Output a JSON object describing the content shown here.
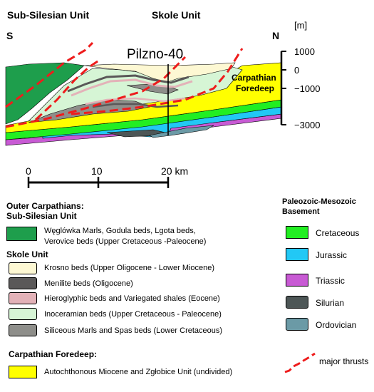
{
  "header": {
    "sub_silesian": "Sub-Silesian Unit",
    "skole": "Skole Unit",
    "south": "S",
    "north": "N",
    "well": "Pilzno-40",
    "carpathian_foredeep_line1": "Carpathian",
    "carpathian_foredeep_line2": "Foredeep"
  },
  "depth_axis": {
    "unit": "[m]",
    "ticks": [
      "1000",
      "0",
      "−1000",
      "−3000"
    ]
  },
  "scale_bar": {
    "labels": [
      "0",
      "10",
      "20 km"
    ]
  },
  "colors": {
    "sub_silesian_green": "#1e9e4c",
    "krosno": "#fdf8d3",
    "menilite": "#5a5858",
    "hieroglyphic": "#e3b2b8",
    "inoceramian": "#d6f5d5",
    "siliceous": "#8e8e8a",
    "foredeep_yellow": "#ffff00",
    "cretaceous": "#22ee22",
    "jurassic": "#22c8f5",
    "triassic": "#c85ad4",
    "silurian": "#4d5656",
    "ordovician": "#6b9aa6",
    "thrust": "#ee1c1c"
  },
  "legend_left": {
    "outer_heading_1": "Outer Carpathians:",
    "outer_heading_2": "Sub-Silesian Unit",
    "sub_silesian_item_line1": "Węglówka Marls, Godula beds, Lgota beds,",
    "sub_silesian_item_line2": "Verovice beds (Upper Cretaceous -Paleocene)",
    "skole_heading": "Skole Unit",
    "skole_items": [
      "Krosno beds (Upper Oligocene - Lower Miocene)",
      "Menilite beds (Oligocene)",
      "Hieroglyphic beds and Variegated shales (Eocene)",
      "Inoceramian beds (Upper Cretaceous - Paleocene)",
      "Siliceous Marls and Spas beds (Lower Cretaceous)"
    ],
    "foredeep_heading": "Carpathian Foredeep:",
    "foredeep_item": "Autochthonous Miocene and Zgłobice Unit (undivided)"
  },
  "legend_right": {
    "heading_1": "Paleozoic-Mesozoic",
    "heading_2": "Basement",
    "items": [
      "Cretaceous",
      "Jurassic",
      "Triassic",
      "Silurian",
      "Ordovician"
    ],
    "thrust_label": "major thrusts"
  }
}
